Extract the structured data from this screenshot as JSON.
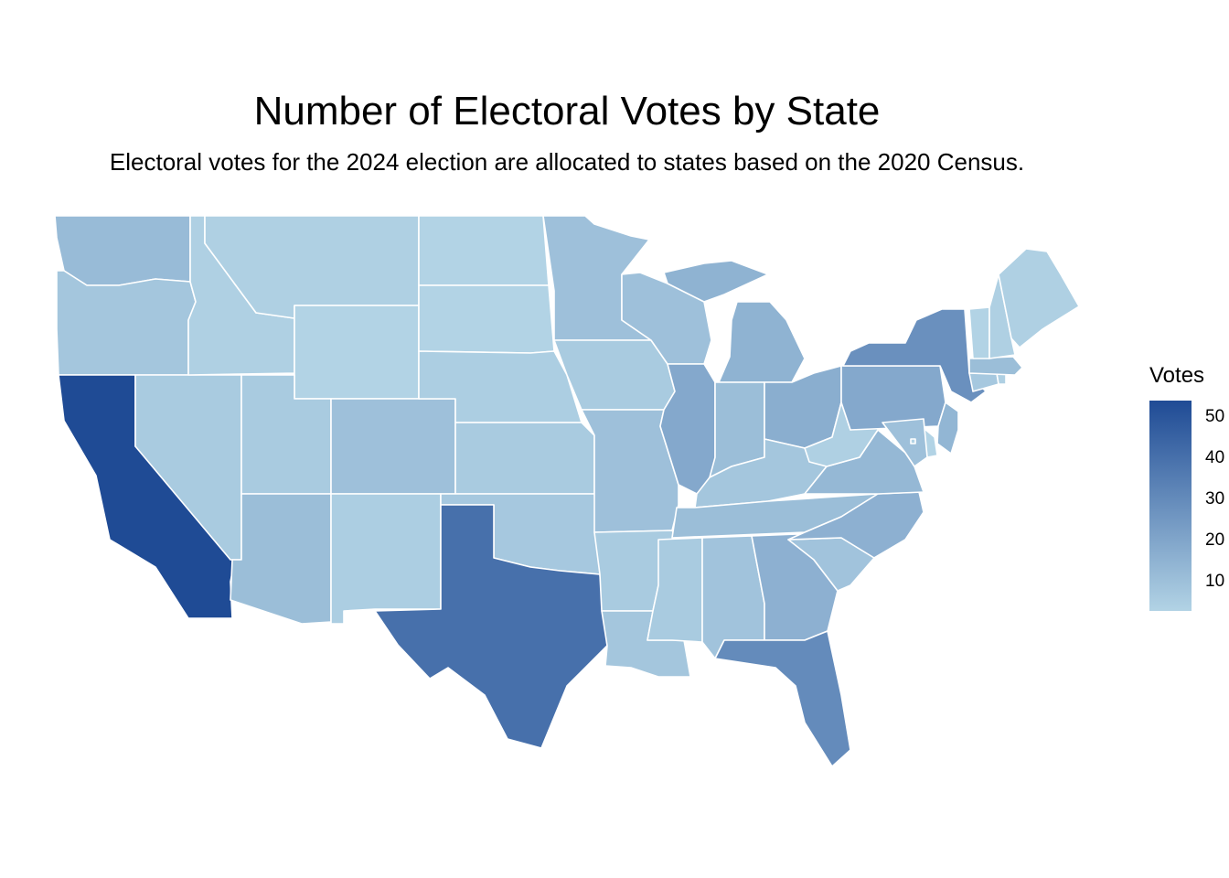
{
  "title": "Number of Electoral Votes by State",
  "subtitle": "Electoral votes for the 2024 election are allocated to states based on the 2020 Census.",
  "legend": {
    "title": "Votes",
    "min": 3,
    "max": 54,
    "ticks": [
      50,
      40,
      30,
      20,
      10
    ],
    "labels": [
      "50",
      "40",
      "30",
      "20",
      "10"
    ],
    "color_low": "#b2d3e5",
    "color_high": "#1f4b95"
  },
  "chart_data": {
    "type": "choropleth",
    "variable": "Votes",
    "states": [
      {
        "code": "WA",
        "votes": 12
      },
      {
        "code": "OR",
        "votes": 8
      },
      {
        "code": "CA",
        "votes": 54
      },
      {
        "code": "NV",
        "votes": 6
      },
      {
        "code": "ID",
        "votes": 4
      },
      {
        "code": "MT",
        "votes": 4
      },
      {
        "code": "WY",
        "votes": 3
      },
      {
        "code": "UT",
        "votes": 6
      },
      {
        "code": "AZ",
        "votes": 11
      },
      {
        "code": "CO",
        "votes": 10
      },
      {
        "code": "NM",
        "votes": 5
      },
      {
        "code": "ND",
        "votes": 3
      },
      {
        "code": "SD",
        "votes": 3
      },
      {
        "code": "NE",
        "votes": 5
      },
      {
        "code": "KS",
        "votes": 6
      },
      {
        "code": "OK",
        "votes": 7
      },
      {
        "code": "TX",
        "votes": 40
      },
      {
        "code": "MN",
        "votes": 10
      },
      {
        "code": "IA",
        "votes": 6
      },
      {
        "code": "MO",
        "votes": 10
      },
      {
        "code": "AR",
        "votes": 6
      },
      {
        "code": "LA",
        "votes": 8
      },
      {
        "code": "WI",
        "votes": 10
      },
      {
        "code": "IL",
        "votes": 19
      },
      {
        "code": "MI",
        "votes": 15
      },
      {
        "code": "IN",
        "votes": 11
      },
      {
        "code": "OH",
        "votes": 17
      },
      {
        "code": "KY",
        "votes": 8
      },
      {
        "code": "TN",
        "votes": 11
      },
      {
        "code": "MS",
        "votes": 6
      },
      {
        "code": "AL",
        "votes": 9
      },
      {
        "code": "GA",
        "votes": 16
      },
      {
        "code": "FL",
        "votes": 30
      },
      {
        "code": "SC",
        "votes": 9
      },
      {
        "code": "NC",
        "votes": 16
      },
      {
        "code": "VA",
        "votes": 13
      },
      {
        "code": "WV",
        "votes": 4
      },
      {
        "code": "PA",
        "votes": 19
      },
      {
        "code": "NY",
        "votes": 28
      },
      {
        "code": "NJ",
        "votes": 14
      },
      {
        "code": "DE",
        "votes": 3
      },
      {
        "code": "MD",
        "votes": 10
      },
      {
        "code": "CT",
        "votes": 7
      },
      {
        "code": "RI",
        "votes": 4
      },
      {
        "code": "MA",
        "votes": 11
      },
      {
        "code": "VT",
        "votes": 3
      },
      {
        "code": "NH",
        "votes": 4
      },
      {
        "code": "ME",
        "votes": 4
      },
      {
        "code": "DC",
        "votes": 3
      }
    ]
  }
}
